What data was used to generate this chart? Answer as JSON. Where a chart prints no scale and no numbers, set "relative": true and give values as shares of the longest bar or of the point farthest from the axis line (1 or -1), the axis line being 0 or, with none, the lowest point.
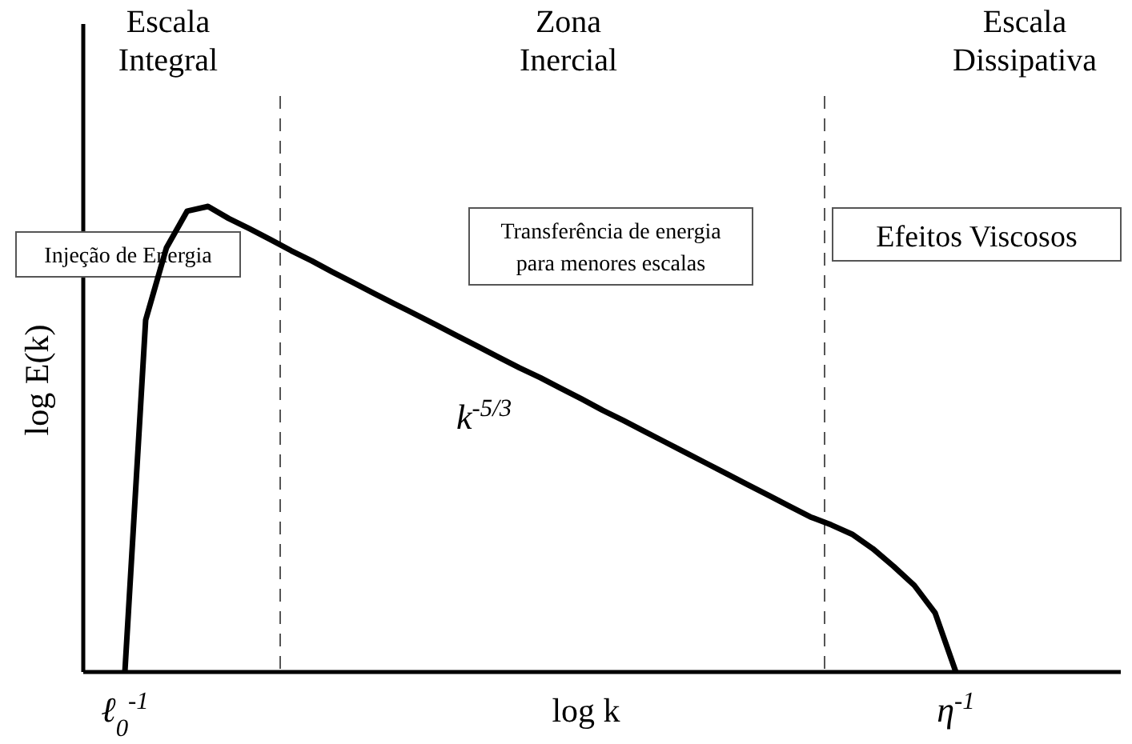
{
  "chart_data": {
    "type": "line",
    "relative": true,
    "xlabel": "log k",
    "ylabel": "log E(k)",
    "categories": [
      "ℓ$_{0}$$^{-1}$",
      null,
      null,
      null,
      null,
      null,
      null,
      null,
      null,
      null,
      null,
      null,
      null,
      null,
      null,
      null,
      null,
      null,
      null,
      null,
      null,
      null,
      null,
      null,
      null,
      null,
      null,
      null,
      null,
      null,
      null,
      null,
      null,
      null,
      null,
      null,
      null,
      null,
      null,
      null,
      "η$^{-1}$"
    ],
    "series": [
      {
        "color": "#000000",
        "values": [
          0,
          0.756,
          0.911,
          0.99,
          1,
          0.974,
          0.952,
          0.929,
          0.905,
          0.883,
          0.859,
          0.836,
          0.813,
          0.79,
          0.768,
          0.745,
          0.722,
          0.699,
          0.676,
          0.653,
          0.632,
          0.609,
          0.586,
          0.562,
          0.54,
          0.517,
          0.494,
          0.471,
          0.448,
          0.425,
          0.402,
          0.379,
          0.356,
          0.333,
          0.316,
          0.296,
          0.265,
          0.227,
          0.186,
          0.127,
          0
        ]
      }
    ],
    "annotations": [
      "Escala Integral",
      "Zona Inercial",
      "Escala Dissipativa",
      "Injeção de Energia",
      "Transferência de energia para menores escalas",
      "Efeitos Viscosos",
      "k$^{-5/3}$"
    ],
    "grid": false,
    "marker": "none",
    "line_style": "solid"
  }
}
